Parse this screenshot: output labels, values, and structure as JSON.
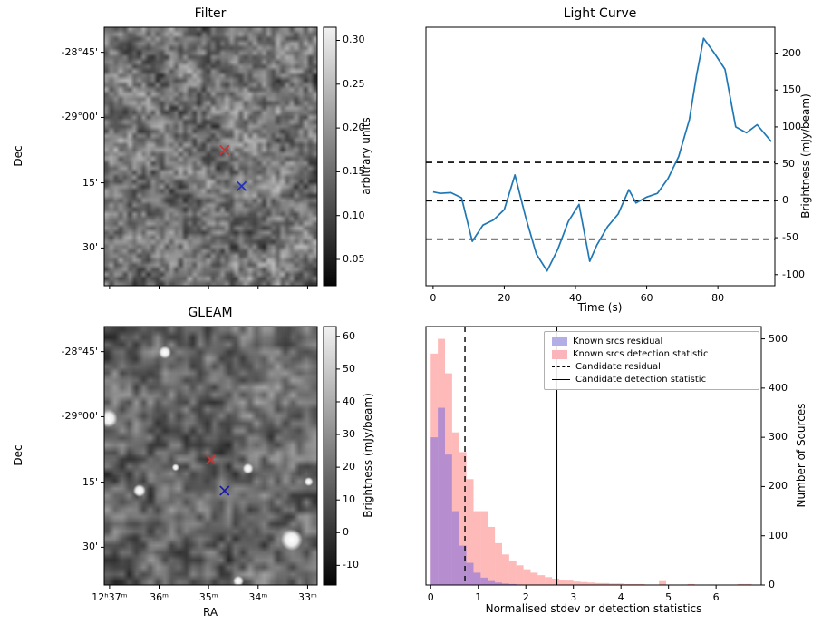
{
  "figure": {
    "background": "#ffffff"
  },
  "chart_data": [
    {
      "id": "filter",
      "type": "heatmap",
      "title": "Filter",
      "xlabel": "",
      "ylabel": "Dec",
      "ytick_labels": [
        "-28°45'",
        "-29°00'",
        "15'",
        "30'"
      ],
      "ytick_pos": [
        0.097,
        0.349,
        0.602,
        0.854
      ],
      "xtick_pos": [
        0.025,
        0.2575,
        0.49,
        0.7225,
        0.955
      ],
      "cmap": "gray",
      "colorbar": {
        "label": "arbitrary units",
        "ticks": [
          "0.30",
          "0.25",
          "0.20",
          "0.15",
          "0.10",
          "0.05"
        ],
        "vmin": 0.02,
        "vmax": 0.315
      },
      "markers": [
        {
          "shape": "x",
          "color": "#cc3333",
          "rx": 0.565,
          "ry": 0.475
        },
        {
          "shape": "x",
          "color": "#2233bb",
          "rx": 0.645,
          "ry": 0.615
        }
      ],
      "noise": {
        "seed": 11,
        "coarse": 14,
        "fine": 46,
        "dark": 0.1
      }
    },
    {
      "id": "light_curve",
      "type": "line",
      "title": "Light Curve",
      "xlabel": "Time (s)",
      "ylabel": "Brightness (mJy/beam)",
      "ylabel_side": "right",
      "xlim": [
        -2,
        96
      ],
      "ylim": [
        -115,
        235
      ],
      "xticks": [
        0,
        20,
        40,
        60,
        80
      ],
      "yticks": [
        -100,
        -50,
        0,
        50,
        100,
        150,
        200
      ],
      "line_color": "#1f77b4",
      "thresholds": [
        52,
        0,
        -52
      ],
      "x": [
        0,
        2,
        5,
        8,
        11,
        14,
        17,
        20,
        23,
        26,
        29,
        32,
        35,
        38,
        41,
        44,
        46,
        49,
        52,
        55,
        57,
        60,
        63,
        66,
        69,
        72,
        74,
        76,
        79,
        82,
        85,
        88,
        91,
        95
      ],
      "y": [
        12,
        10,
        11,
        4,
        -55,
        -33,
        -26,
        -12,
        35,
        -22,
        -72,
        -95,
        -66,
        -28,
        -5,
        -82,
        -60,
        -35,
        -18,
        15,
        -3,
        5,
        10,
        30,
        60,
        110,
        170,
        220,
        200,
        178,
        100,
        92,
        103,
        80
      ]
    },
    {
      "id": "gleam",
      "type": "heatmap",
      "title": "GLEAM",
      "xlabel": "RA",
      "ylabel": "Dec",
      "xtick_labels": [
        "12ʰ37ᵐ",
        "36ᵐ",
        "35ᵐ",
        "34ᵐ",
        "33ᵐ"
      ],
      "xtick_pos": [
        0.025,
        0.2575,
        0.49,
        0.7225,
        0.955
      ],
      "ytick_labels": [
        "-28°45'",
        "-29°00'",
        "15'",
        "30'"
      ],
      "ytick_pos": [
        0.097,
        0.349,
        0.602,
        0.854
      ],
      "cmap": "gray",
      "colorbar": {
        "label": "Brightness (mJy/beam)",
        "ticks": [
          "60",
          "50",
          "40",
          "30",
          "20",
          "10",
          "0",
          "-10"
        ],
        "vmin": -16,
        "vmax": 63
      },
      "markers": [
        {
          "shape": "x",
          "color": "#cc3333",
          "rx": 0.5,
          "ry": 0.515
        },
        {
          "shape": "x",
          "color": "#1a1aaa",
          "rx": 0.565,
          "ry": 0.635
        }
      ],
      "sources": [
        {
          "rx": 0.02,
          "ry": 0.355,
          "r": 10
        },
        {
          "rx": 0.285,
          "ry": 0.1,
          "r": 7
        },
        {
          "rx": 0.165,
          "ry": 0.635,
          "r": 7
        },
        {
          "rx": 0.675,
          "ry": 0.55,
          "r": 6
        },
        {
          "rx": 0.88,
          "ry": 0.825,
          "r": 12
        },
        {
          "rx": 0.96,
          "ry": 0.6,
          "r": 5
        },
        {
          "rx": 0.63,
          "ry": 0.985,
          "r": 6
        },
        {
          "rx": 0.335,
          "ry": 0.545,
          "r": 4
        }
      ],
      "noise": {
        "seed": 23,
        "coarse": 11,
        "fine": 30,
        "dark": 0.22
      }
    },
    {
      "id": "histogram",
      "type": "bar",
      "title": "",
      "xlabel": "Normalised stdev or detection statistics",
      "ylabel": "Number of Sources",
      "ylabel_side": "right",
      "xlim": [
        -0.1,
        6.95
      ],
      "ylim": [
        0,
        525
      ],
      "xticks": [
        0,
        1,
        2,
        3,
        4,
        5,
        6
      ],
      "yticks": [
        0,
        100,
        200,
        300,
        400,
        500
      ],
      "bin_start": 0,
      "bin_width": 0.15,
      "series": [
        {
          "name": "Known srcs detection statistic",
          "color": "rgba(252,100,100,0.45)",
          "swatch": "#fbb4b9",
          "values": [
            470,
            500,
            430,
            310,
            270,
            215,
            150,
            150,
            118,
            85,
            62,
            48,
            40,
            32,
            25,
            20,
            16,
            13,
            11,
            9,
            7,
            6,
            5,
            4,
            4,
            3,
            3,
            2,
            2,
            2,
            1,
            1,
            8,
            1,
            0,
            1,
            2,
            0,
            0,
            1,
            0,
            0,
            0,
            2,
            2,
            0
          ]
        },
        {
          "name": "Known srcs residual",
          "color": "rgba(110,100,230,0.5)",
          "swatch": "#b3aee5",
          "values": [
            300,
            360,
            265,
            150,
            80,
            45,
            25,
            15,
            8,
            5,
            3,
            2,
            1,
            0,
            0,
            0,
            0,
            0,
            0,
            0,
            0,
            0,
            0,
            0,
            0,
            0,
            0,
            0,
            0,
            0,
            0,
            0,
            0,
            0,
            0,
            0,
            0,
            0,
            0,
            0,
            0,
            0,
            0,
            0,
            0,
            0
          ]
        }
      ],
      "vlines": [
        {
          "name": "Candidate residual",
          "x": 0.72,
          "style": "dashed",
          "color": "#000000"
        },
        {
          "name": "Candidate detection statistic",
          "x": 2.65,
          "style": "solid",
          "color": "#000000"
        }
      ],
      "legend": [
        "Known srcs residual",
        "Known srcs detection statistic",
        "Candidate residual",
        "Candidate detection statistic"
      ]
    }
  ]
}
